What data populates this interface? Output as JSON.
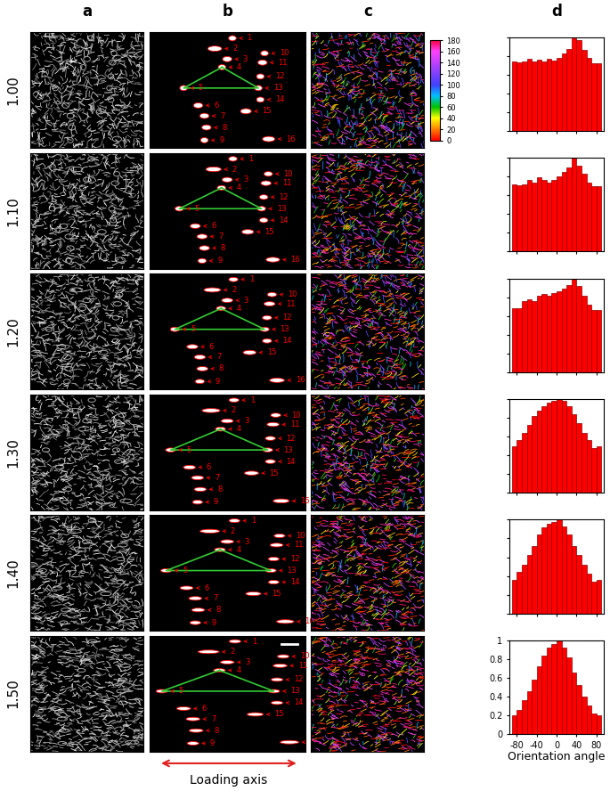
{
  "column_labels": [
    "a",
    "b",
    "c",
    "d"
  ],
  "row_labels": [
    "1.00",
    "1.10",
    "1.20",
    "1.30",
    "1.40",
    "1.50"
  ],
  "hole_labels": [
    "1",
    "2",
    "3",
    "4",
    "5",
    "6",
    "7",
    "8",
    "9",
    "10",
    "11",
    "12",
    "13",
    "14",
    "15",
    "16"
  ],
  "loading_axis": "Loading axis",
  "colorbar": {
    "range": [
      0,
      180
    ],
    "ticks": [
      0,
      20,
      40,
      60,
      80,
      100,
      120,
      140,
      160,
      180
    ]
  },
  "chart_data": [
    {
      "type": "bar",
      "bins": [
        -90,
        -80,
        -70,
        -60,
        -50,
        -40,
        -30,
        -20,
        -10,
        0,
        10,
        20,
        30,
        40,
        50,
        60,
        70,
        80,
        90
      ],
      "values": [
        0.74,
        0.73,
        0.74,
        0.77,
        0.74,
        0.76,
        0.74,
        0.77,
        0.75,
        0.78,
        0.83,
        0.87,
        1.0,
        0.97,
        0.86,
        0.78,
        0.72,
        0.72
      ],
      "color": "#ff0000",
      "xlim": [
        -95,
        95
      ],
      "ylim": [
        0,
        1
      ],
      "xticks": [
        -80,
        -40,
        0,
        40,
        80
      ],
      "yticks": [
        0,
        0.2,
        0.4,
        0.6,
        0.8,
        1
      ],
      "tick_labels": false
    },
    {
      "type": "bar",
      "bins": [
        -90,
        -80,
        -70,
        -60,
        -50,
        -40,
        -30,
        -20,
        -10,
        0,
        10,
        20,
        30,
        40,
        50,
        60,
        70,
        80,
        90
      ],
      "values": [
        0.72,
        0.71,
        0.72,
        0.76,
        0.74,
        0.79,
        0.76,
        0.74,
        0.76,
        0.8,
        0.85,
        0.9,
        1.0,
        0.92,
        0.83,
        0.74,
        0.7,
        0.7
      ],
      "color": "#ff0000",
      "xlim": [
        -95,
        95
      ],
      "ylim": [
        0,
        1
      ],
      "xticks": [
        -80,
        -40,
        0,
        40,
        80
      ],
      "yticks": [
        0,
        0.2,
        0.4,
        0.6,
        0.8,
        1
      ],
      "tick_labels": false
    },
    {
      "type": "bar",
      "bins": [
        -90,
        -80,
        -70,
        -60,
        -50,
        -40,
        -30,
        -20,
        -10,
        0,
        10,
        20,
        30,
        40,
        50,
        60,
        70,
        80,
        90
      ],
      "values": [
        0.68,
        0.68,
        0.76,
        0.78,
        0.76,
        0.82,
        0.83,
        0.82,
        0.84,
        0.86,
        0.89,
        0.93,
        1.0,
        0.92,
        0.82,
        0.72,
        0.66,
        0.66
      ],
      "color": "#ff0000",
      "xlim": [
        -95,
        95
      ],
      "ylim": [
        0,
        1
      ],
      "xticks": [
        -80,
        -40,
        0,
        40,
        80
      ],
      "yticks": [
        0,
        0.2,
        0.4,
        0.6,
        0.8,
        1
      ],
      "tick_labels": false
    },
    {
      "type": "bar",
      "bins": [
        -90,
        -80,
        -70,
        -60,
        -50,
        -40,
        -30,
        -20,
        -10,
        0,
        10,
        20,
        30,
        40,
        50,
        60,
        70,
        80,
        90
      ],
      "values": [
        0.5,
        0.56,
        0.64,
        0.72,
        0.82,
        0.88,
        0.92,
        0.96,
        0.98,
        1.0,
        0.98,
        0.92,
        0.84,
        0.74,
        0.64,
        0.56,
        0.48,
        0.5
      ],
      "color": "#ff0000",
      "xlim": [
        -95,
        95
      ],
      "ylim": [
        0,
        1
      ],
      "xticks": [
        -80,
        -40,
        0,
        40,
        80
      ],
      "yticks": [
        0,
        0.2,
        0.4,
        0.6,
        0.8,
        1
      ],
      "tick_labels": false
    },
    {
      "type": "bar",
      "bins": [
        -90,
        -80,
        -70,
        -60,
        -50,
        -40,
        -30,
        -20,
        -10,
        0,
        10,
        20,
        30,
        40,
        50,
        60,
        70,
        80,
        90
      ],
      "values": [
        0.36,
        0.44,
        0.52,
        0.62,
        0.72,
        0.84,
        0.92,
        0.96,
        0.98,
        1.0,
        0.93,
        0.84,
        0.72,
        0.62,
        0.52,
        0.42,
        0.34,
        0.36
      ],
      "color": "#ff0000",
      "xlim": [
        -95,
        95
      ],
      "ylim": [
        0,
        1
      ],
      "xticks": [
        -80,
        -40,
        0,
        40,
        80
      ],
      "yticks": [
        0,
        0.2,
        0.4,
        0.6,
        0.8,
        1
      ],
      "tick_labels": false
    },
    {
      "type": "bar",
      "bins": [
        -90,
        -80,
        -70,
        -60,
        -50,
        -40,
        -30,
        -20,
        -10,
        0,
        10,
        20,
        30,
        40,
        50,
        60,
        70,
        80,
        90
      ],
      "values": [
        0.2,
        0.26,
        0.36,
        0.46,
        0.58,
        0.72,
        0.84,
        0.92,
        0.96,
        1.0,
        0.92,
        0.82,
        0.66,
        0.52,
        0.4,
        0.3,
        0.22,
        0.2
      ],
      "color": "#ff0000",
      "xlim": [
        -95,
        95
      ],
      "ylim": [
        0,
        1
      ],
      "xticks": [
        -80,
        -40,
        0,
        40,
        80
      ],
      "yticks": [
        0,
        0.2,
        0.4,
        0.6,
        0.8,
        1
      ],
      "xlabel": "Orientation angle"
    }
  ]
}
